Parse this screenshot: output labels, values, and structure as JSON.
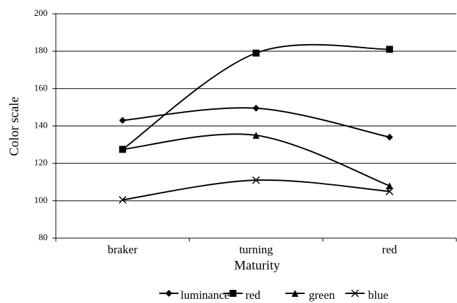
{
  "chart_data": {
    "type": "line",
    "x_label": "Maturity",
    "y_label": "Color scale",
    "categories": [
      "braker",
      "turning",
      "red"
    ],
    "series": [
      {
        "name": "luminance",
        "color": "#000000",
        "marker": "diamond",
        "values": [
          143,
          149.5,
          134
        ]
      },
      {
        "name": "red",
        "color": "#000000",
        "marker": "square",
        "values": [
          127.5,
          179,
          181
        ]
      },
      {
        "name": "green",
        "color": "#000000",
        "marker": "triangle",
        "values": [
          127.5,
          135,
          108
        ]
      },
      {
        "name": "blue",
        "color": "#000000",
        "marker": "x",
        "values": [
          100.5,
          111,
          105
        ]
      }
    ],
    "ylim": [
      80,
      200
    ],
    "yticks": [
      80,
      100,
      120,
      140,
      160,
      180,
      200
    ],
    "grid": true,
    "smooth": true,
    "legend": "bottom"
  }
}
